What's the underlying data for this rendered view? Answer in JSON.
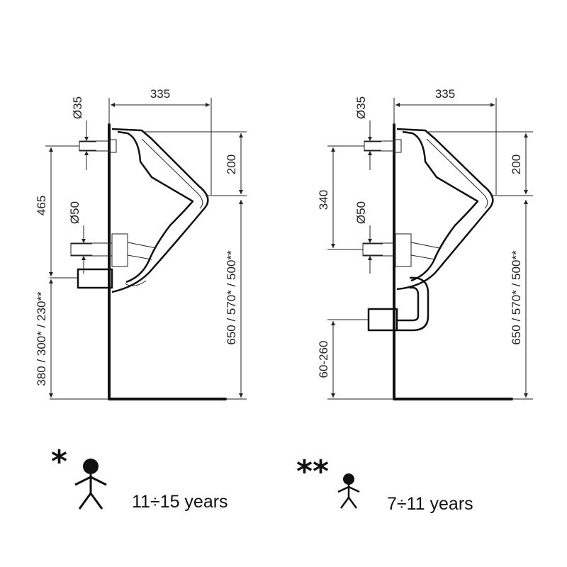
{
  "left_view": {
    "width_label": "335",
    "inlet_diameter_label": "Ø35",
    "outlet_diameter_label": "Ø50",
    "inlet_depth_label": "200",
    "inlet_to_outlet_label": "465",
    "floor_to_outlet_label": "380 / 300* / 230**",
    "rim_height_label": "650 / 570* / 500**"
  },
  "right_view": {
    "width_label": "335",
    "inlet_diameter_label": "Ø35",
    "outlet_diameter_label": "Ø50",
    "inlet_depth_label": "200",
    "inlet_to_outlet_label": "340",
    "floor_to_outlet_label": "60-260",
    "rim_height_label": "650 / 570* / 500**"
  },
  "legend": {
    "single_star": {
      "symbol": "*",
      "label": "11÷15 years"
    },
    "double_star": {
      "symbol": "**",
      "label": "7÷11 years"
    }
  }
}
